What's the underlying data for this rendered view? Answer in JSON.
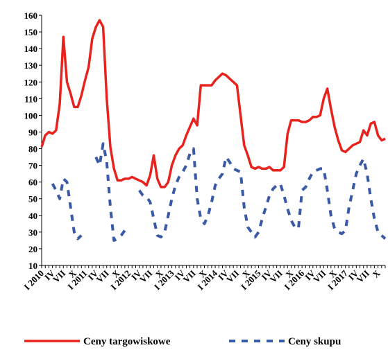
{
  "chart_data": {
    "type": "line",
    "categories": [
      "I 2010",
      null,
      null,
      "IV",
      null,
      null,
      "VII",
      null,
      null,
      "X",
      null,
      null,
      "I 2011",
      null,
      null,
      "IV",
      null,
      null,
      "VII",
      null,
      null,
      "X",
      null,
      null,
      "I 2012",
      null,
      null,
      "IV",
      null,
      null,
      "VII",
      null,
      null,
      "X",
      null,
      null,
      "I 2013",
      null,
      null,
      "IV",
      null,
      null,
      "VII",
      null,
      null,
      "X",
      null,
      null,
      "I 2014",
      null,
      null,
      "IV",
      null,
      null,
      "VII",
      null,
      null,
      "X",
      null,
      null,
      "I 2015",
      null,
      null,
      "IV",
      null,
      null,
      "VII",
      null,
      null,
      "X",
      null,
      null,
      "I 2016",
      null,
      null,
      "IV",
      null,
      null,
      "VII",
      null,
      null,
      "X",
      null,
      null,
      "I 2017",
      null,
      null,
      "IV",
      null,
      null,
      "VII",
      null,
      null,
      "X",
      null,
      null
    ],
    "series": [
      {
        "name": "Ceny targowiskowe",
        "color": "#e8231e",
        "dashed": false,
        "values": [
          81,
          88,
          90,
          89,
          91,
          107,
          147,
          120,
          113,
          105,
          105,
          112,
          121,
          129,
          146,
          153,
          157,
          153,
          110,
          81,
          68,
          61,
          61,
          62,
          62,
          63,
          62,
          61,
          60,
          58,
          64,
          76,
          62,
          57,
          57,
          60,
          70,
          76,
          80,
          82,
          88,
          93,
          98,
          94,
          118,
          118,
          118,
          118,
          121,
          123,
          125,
          124,
          122,
          120,
          118,
          100,
          82,
          76,
          69,
          68,
          69,
          68,
          68,
          69,
          67,
          67,
          67,
          69,
          89,
          97,
          97,
          97,
          96,
          96,
          97,
          99,
          99,
          100,
          110,
          116,
          104,
          93,
          85,
          79,
          78,
          80,
          82,
          83,
          84,
          91,
          88,
          95,
          96,
          88,
          85,
          86
        ]
      },
      {
        "name": "Ceny skupu",
        "color": "#3a5aa8",
        "dashed": true,
        "values": [
          null,
          null,
          null,
          59,
          55,
          50,
          62,
          60,
          45,
          30,
          26,
          28,
          null,
          null,
          null,
          75,
          70,
          83,
          72,
          45,
          25,
          26,
          28,
          31,
          null,
          null,
          null,
          55,
          52,
          51,
          48,
          38,
          28,
          27,
          30,
          40,
          50,
          58,
          63,
          66,
          70,
          77,
          80,
          50,
          38,
          35,
          40,
          48,
          58,
          62,
          65,
          75,
          72,
          68,
          67,
          66,
          45,
          33,
          30,
          27,
          30,
          38,
          45,
          52,
          56,
          58,
          59,
          52,
          44,
          37,
          33,
          32,
          55,
          57,
          62,
          66,
          67,
          68,
          68,
          55,
          40,
          32,
          30,
          29,
          31,
          45,
          55,
          65,
          70,
          74,
          65,
          50,
          38,
          30,
          28,
          26
        ]
      }
    ],
    "ylim": [
      10,
      160
    ],
    "yticks": [
      10,
      20,
      30,
      40,
      50,
      60,
      70,
      80,
      90,
      100,
      110,
      120,
      130,
      140,
      150,
      160
    ],
    "grid": false,
    "legend": "bottom"
  }
}
